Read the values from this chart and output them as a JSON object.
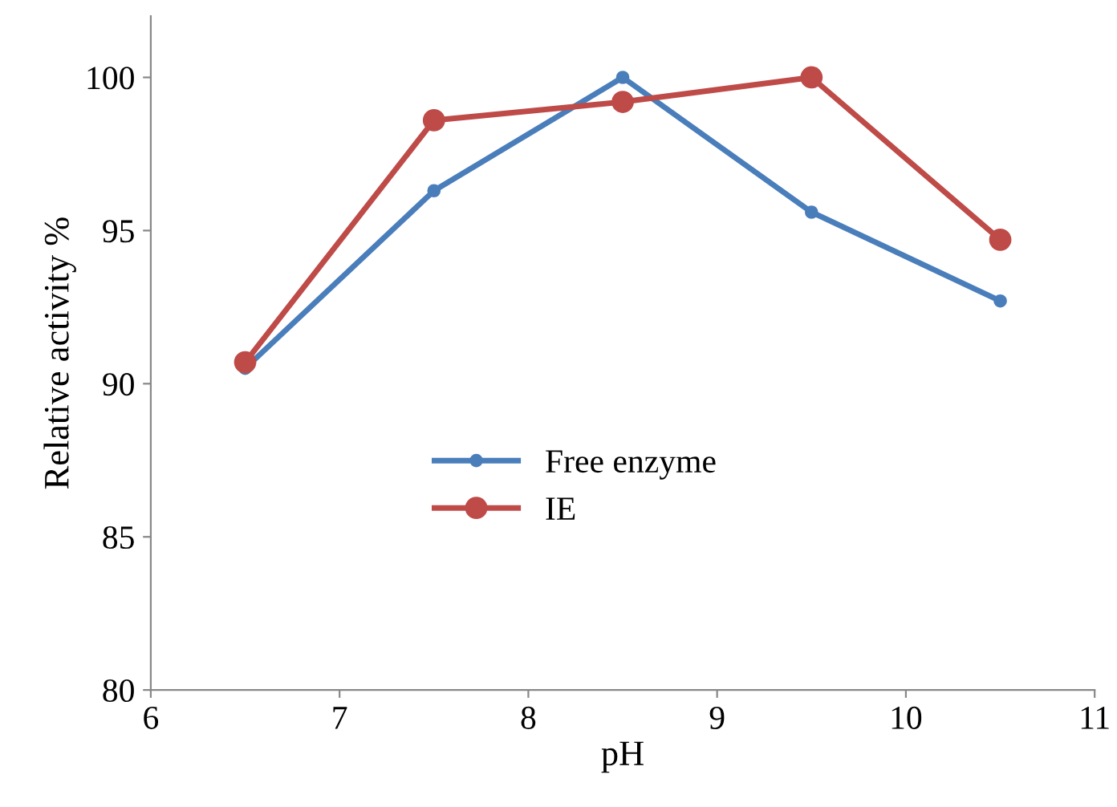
{
  "chart_data": {
    "type": "line",
    "xlabel": "pH",
    "ylabel": "Relative activity %",
    "x": [
      6.5,
      7.5,
      8.5,
      9.5,
      10.5
    ],
    "series": [
      {
        "name": "Free enzyme",
        "color": "#4a7ebb",
        "values": [
          90.5,
          96.3,
          100,
          95.6,
          92.7
        ],
        "marker": "circle"
      },
      {
        "name": "IE",
        "color": "#be4b48",
        "values": [
          90.7,
          98.6,
          99.2,
          100,
          94.7
        ],
        "marker": "circle"
      }
    ],
    "xlim": [
      6,
      11
    ],
    "xticks": [
      6,
      7,
      8,
      9,
      10,
      11
    ],
    "ylim": [
      80,
      102
    ],
    "yticks": [
      80,
      85,
      90,
      95,
      100
    ],
    "grid": false,
    "legend": "center"
  }
}
